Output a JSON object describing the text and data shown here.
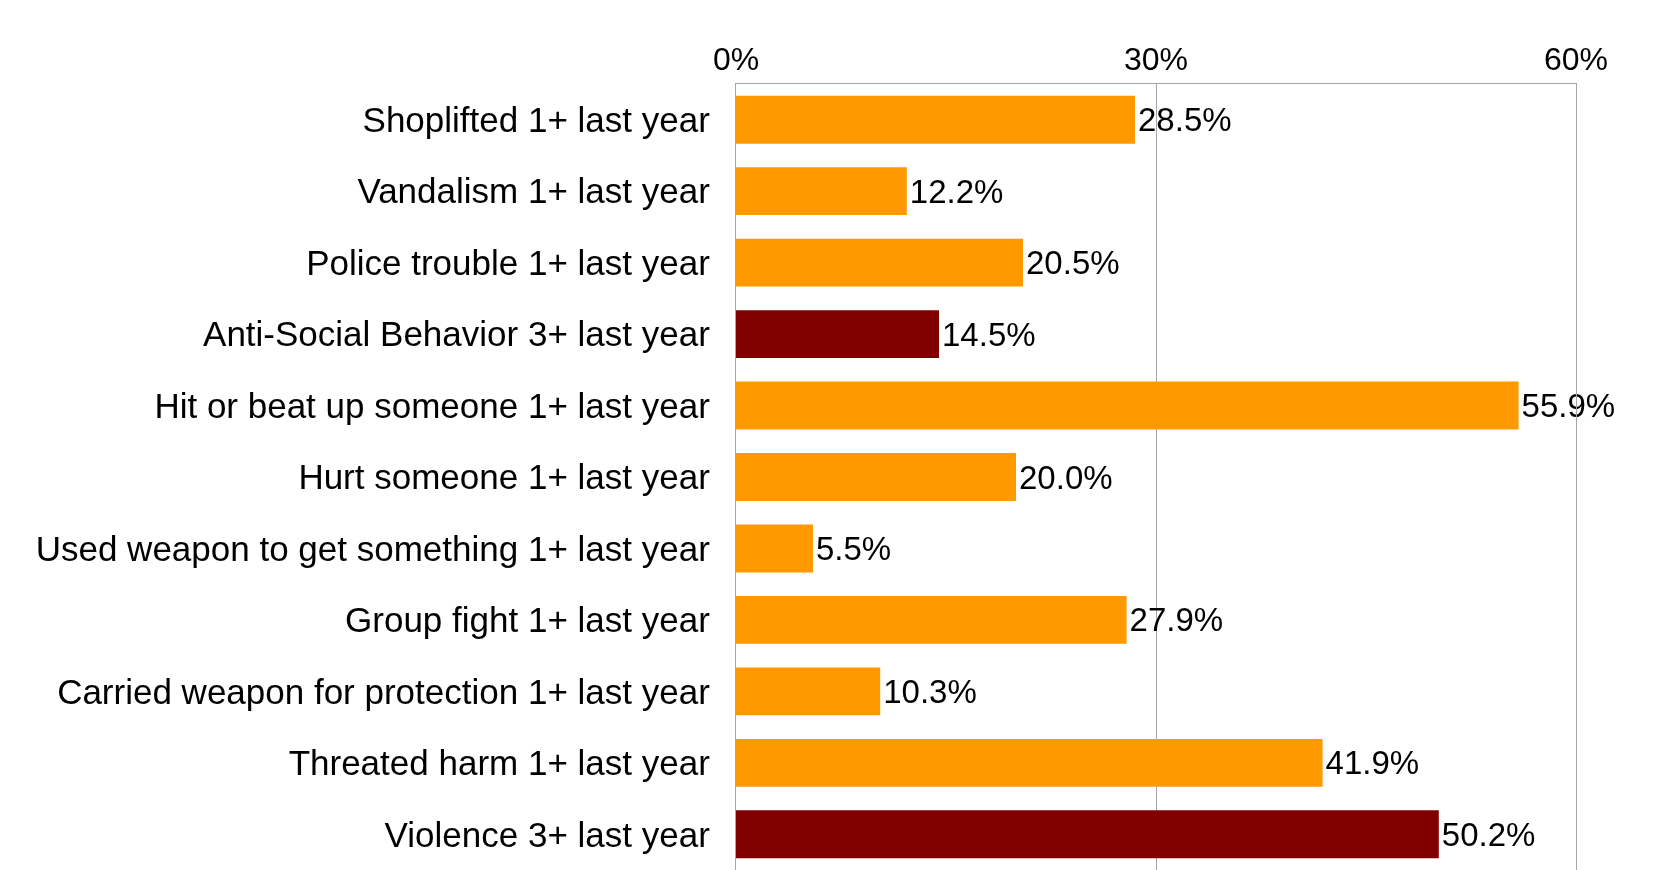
{
  "chart_data": {
    "type": "bar",
    "orientation": "horizontal",
    "categories": [
      "Shoplifted 1+ last year",
      "Vandalism 1+ last year",
      "Police trouble 1+ last year",
      "Anti-Social Behavior 3+ last year",
      "Hit or beat up someone 1+ last year",
      "Hurt someone 1+ last year",
      "Used weapon to get something 1+ last year",
      "Group fight 1+ last year",
      "Carried weapon for protection 1+ last year",
      "Threated harm 1+ last year",
      "Violence 3+ last year"
    ],
    "values": [
      28.5,
      12.2,
      20.5,
      14.5,
      55.9,
      20.0,
      5.5,
      27.9,
      10.3,
      41.9,
      50.2
    ],
    "colors": [
      "#ff9900",
      "#ff9900",
      "#ff9900",
      "#800000",
      "#ff9900",
      "#ff9900",
      "#ff9900",
      "#ff9900",
      "#ff9900",
      "#ff9900",
      "#800000"
    ],
    "value_labels": [
      "28.5%",
      "12.2%",
      "20.5%",
      "14.5%",
      "55.9%",
      "20.0%",
      "5.5%",
      "27.9%",
      "10.3%",
      "41.9%",
      "50.2%"
    ],
    "xlim": [
      0,
      60
    ],
    "xticks": [
      {
        "value": 0,
        "label": "0%"
      },
      {
        "value": 30,
        "label": "30%"
      },
      {
        "value": 60,
        "label": "60%"
      }
    ],
    "grid": "x"
  }
}
